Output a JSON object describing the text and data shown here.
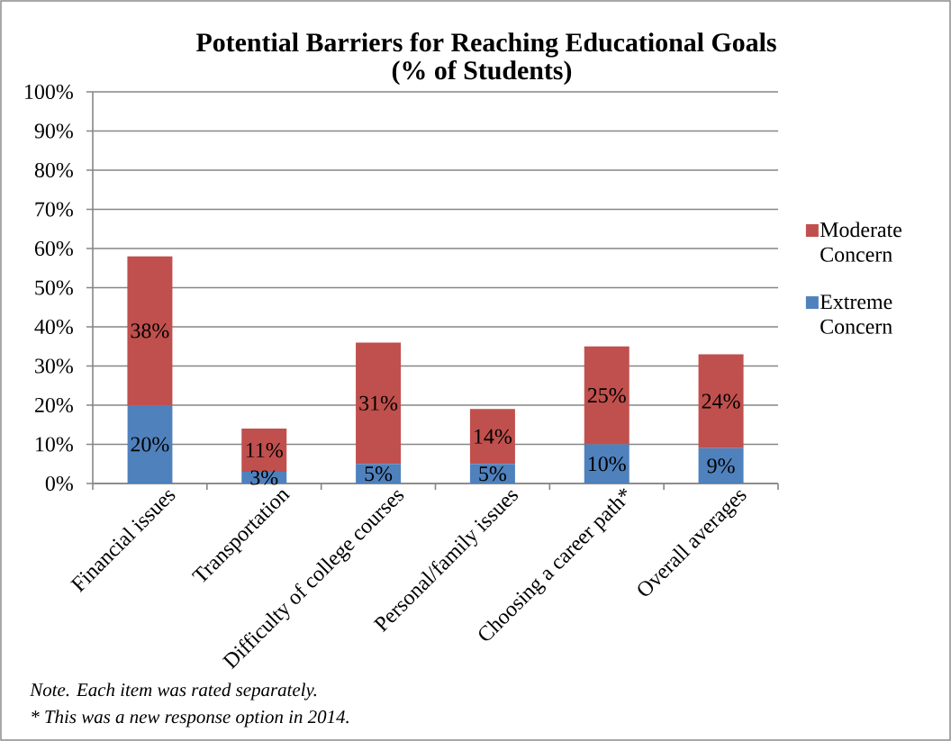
{
  "chart_data": {
    "type": "bar",
    "stacked": true,
    "title": "Potential Barriers for Reaching Educational Goals",
    "subtitle": "(% of Students)",
    "categories": [
      "Financial issues",
      "Transportation",
      "Difficulty of college courses",
      "Personal/family issues",
      "Choosing a career path*",
      "Overall averages"
    ],
    "series": [
      {
        "name": "Extreme Concern",
        "color": "#4f81bd",
        "values": [
          20,
          3,
          5,
          5,
          10,
          9
        ],
        "value_labels": [
          "20%",
          "3%",
          "5%",
          "5%",
          "10%",
          "9%"
        ]
      },
      {
        "name": "Moderate Concern",
        "color": "#c0504d",
        "values": [
          38,
          11,
          31,
          14,
          25,
          24
        ],
        "value_labels": [
          "38%",
          "11%",
          "31%",
          "14%",
          "25%",
          "24%"
        ]
      }
    ],
    "ylim": [
      0,
      100
    ],
    "yticks": [
      {
        "value": 0,
        "label": "0%"
      },
      {
        "value": 10,
        "label": "10%"
      },
      {
        "value": 20,
        "label": "20%"
      },
      {
        "value": 30,
        "label": "30%"
      },
      {
        "value": 40,
        "label": "40%"
      },
      {
        "value": 50,
        "label": "50%"
      },
      {
        "value": 60,
        "label": "60%"
      },
      {
        "value": 70,
        "label": "70%"
      },
      {
        "value": 80,
        "label": "80%"
      },
      {
        "value": 90,
        "label": "90%"
      },
      {
        "value": 100,
        "label": "100%"
      }
    ],
    "grid": "y",
    "legend": "right",
    "annotations": [
      "Note. Each item was rated separately.",
      "* This was a new response option in 2014."
    ]
  }
}
